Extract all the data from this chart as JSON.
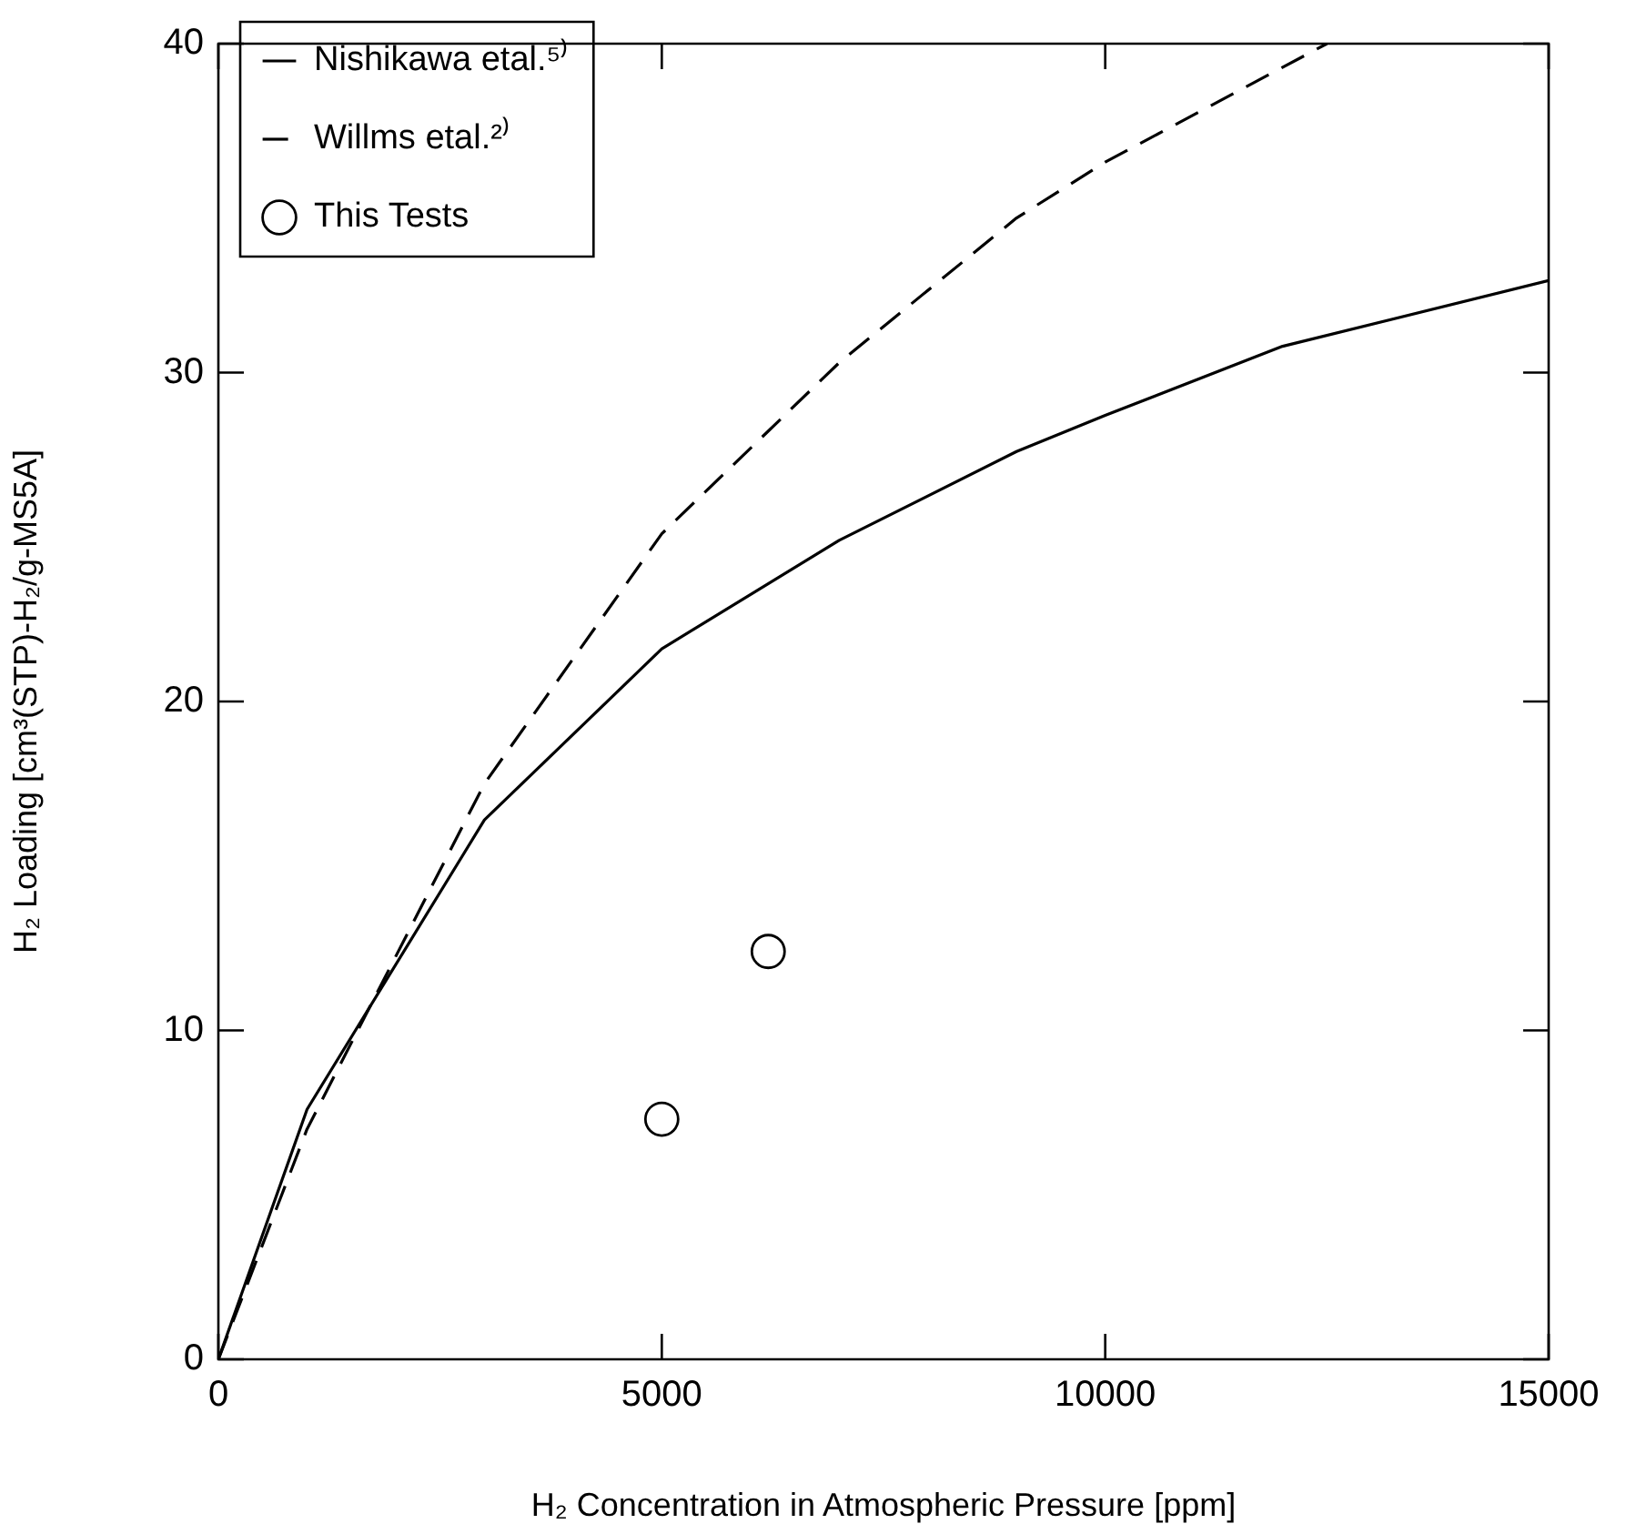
{
  "chart_data": {
    "type": "line",
    "xlabel": "H₂ Concentration in Atmospheric Pressure [ppm]",
    "ylabel": "H₂ Loading [cm³(STP)-H₂/g-MS5A]",
    "xlim": [
      0,
      15000
    ],
    "xticks": [
      0,
      5000,
      10000,
      15000
    ],
    "ylim": [
      0,
      40
    ],
    "yticks": [
      0,
      10,
      20,
      30,
      40
    ],
    "grid": false,
    "legend": "top left",
    "series": [
      {
        "name": "Nishikawa etal.⁵⁾",
        "type": "line",
        "color": "#000000",
        "line_style": "solid",
        "marker": "none",
        "x": [
          0,
          1000,
          3000,
          5000,
          7000,
          9000,
          10000,
          12000,
          15000
        ],
        "values": [
          0,
          7.6,
          16.4,
          21.6,
          24.9,
          27.6,
          28.7,
          30.8,
          32.8
        ]
      },
      {
        "name": "Willms etal.²⁾",
        "type": "line",
        "color": "#000000",
        "line_style": "dashed",
        "marker": "none",
        "x": [
          0,
          1000,
          3000,
          5000,
          7000,
          9000,
          10000,
          12500
        ],
        "values": [
          0,
          7.0,
          17.5,
          25.1,
          30.3,
          34.7,
          36.4,
          40
        ]
      },
      {
        "name": "This Tests",
        "type": "scatter",
        "color": "#000000",
        "marker": "circle",
        "x": [
          5000,
          6200
        ],
        "values": [
          7.3,
          12.4
        ]
      }
    ]
  }
}
